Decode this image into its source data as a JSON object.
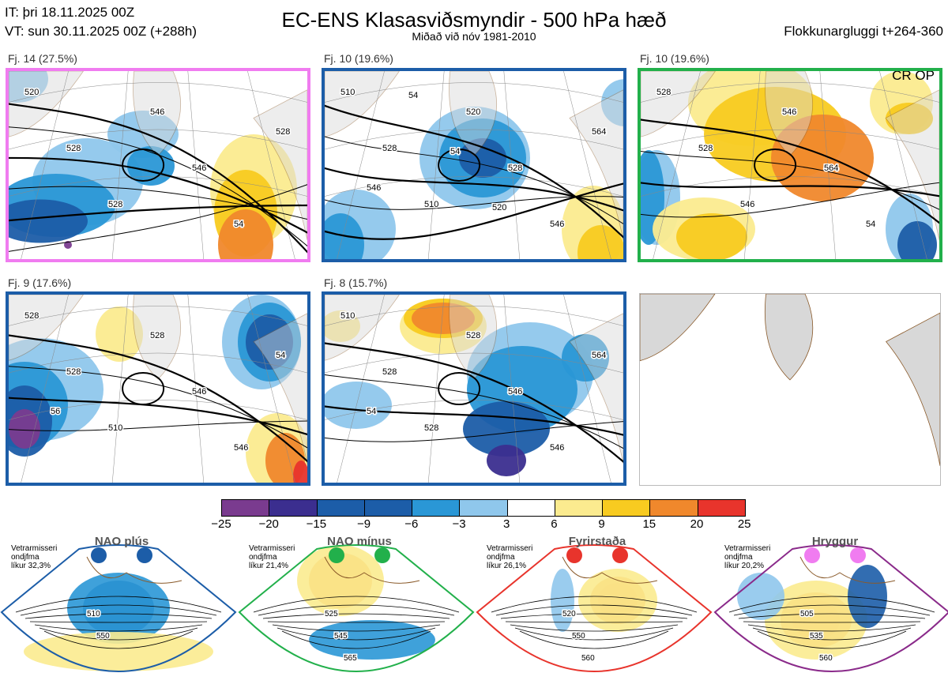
{
  "header": {
    "it": "IT: þri 18.11.2025 00Z",
    "vt": "VT: sun 30.11.2025 00Z  (+288h)",
    "title": "EC-ENS Klasasviðsmyndir - 500 hPa hæð",
    "subtitle": "Miðað við nóv 1981-2010",
    "window": "Flokkunargluggi t+264-360"
  },
  "panels": [
    {
      "label": "Fj. 14 (27.5%)",
      "frame": "#f07cf0",
      "tag": "",
      "contour_labels": [
        "520",
        "528",
        "528",
        "546",
        "546",
        "54",
        "528"
      ]
    },
    {
      "label": "Fj. 10 (19.6%)",
      "frame": "#1c5da8",
      "tag": "",
      "contour_labels": [
        "510",
        "528",
        "510",
        "520",
        "528",
        "546",
        "564",
        "546",
        "54",
        "54",
        "520"
      ]
    },
    {
      "label": "Fj. 10 (19.6%)",
      "frame": "#22b04b",
      "tag": "CR OP",
      "contour_labels": [
        "528",
        "528",
        "546",
        "546",
        "564",
        "54"
      ]
    },
    {
      "label": "Fj. 9 (17.6%)",
      "frame": "#1c5da8",
      "tag": "",
      "contour_labels": [
        "528",
        "528",
        "510",
        "528",
        "546",
        "546",
        "54",
        "56"
      ]
    },
    {
      "label": "Fj. 8 (15.7%)",
      "frame": "#1c5da8",
      "tag": "",
      "contour_labels": [
        "510",
        "528",
        "528",
        "528",
        "546",
        "546",
        "564",
        "54"
      ]
    },
    {
      "label": "",
      "frame": "#bbbbbb",
      "tag": "",
      "contour_labels": []
    }
  ],
  "colors": {
    "purple": "#7a3b8f",
    "navy": "#3b2e8f",
    "dark_blue": "#1c5da8",
    "blue": "#2a97d6",
    "light_blue": "#8fc7ec",
    "white": "#ffffff",
    "pale_yellow": "#fbeb8f",
    "yellow": "#f8cb20",
    "orange": "#f0882c",
    "red": "#e8342c",
    "dark_red": "#a81018",
    "land": "#d8d8d8",
    "coast": "#8a5a2a"
  },
  "chart_data": {
    "type": "heatmap",
    "title": "EC-ENS Klasasviðsmyndir - 500 hPa hæð",
    "subtitle": "Miðað við nóv 1981-2010",
    "clusters": [
      {
        "label": "Fj. 14 (27.5%)",
        "frequency_pct": 27.5
      },
      {
        "label": "Fj. 10 (19.6%)",
        "frequency_pct": 19.6
      },
      {
        "label": "Fj. 10 (19.6%)",
        "frequency_pct": 19.6,
        "regime": "CR OP"
      },
      {
        "label": "Fj. 9 (17.6%)",
        "frequency_pct": 17.6
      },
      {
        "label": "Fj. 8 (15.7%)",
        "frequency_pct": 15.7
      }
    ],
    "colorbar": {
      "boundaries": [
        "−25",
        "−20",
        "−15",
        "−9",
        "−6",
        "−3",
        "3",
        "6",
        "9",
        "15",
        "20",
        "25"
      ],
      "colors": [
        "#7a3b8f",
        "#3b2e8f",
        "#1c5da8",
        "#1c5da8",
        "#2a97d6",
        "#8fc7ec",
        "#ffffff",
        "#fbeb8f",
        "#f8cb20",
        "#f0882c",
        "#e8342c",
        "#a81018"
      ]
    },
    "regimes": [
      {
        "name": "NAO plús",
        "dot_color": "#1c5da8",
        "frame": "#1c5da8",
        "note": [
          "Vetrarmisseri",
          "ondjfma",
          "líkur 32,3%"
        ],
        "probability_pct": 32.3,
        "contour_labels": [
          "510",
          "550"
        ]
      },
      {
        "name": "NAO mínus",
        "dot_color": "#22b04b",
        "frame": "#22b04b",
        "note": [
          "Vetrarmisseri",
          "ondjfma",
          "líkur 21,4%"
        ],
        "probability_pct": 21.4,
        "contour_labels": [
          "525",
          "545",
          "565"
        ]
      },
      {
        "name": "Fyrirstaða",
        "dot_color": "#e8342c",
        "frame": "#e8342c",
        "note": [
          "Vetrarmisseri",
          "ondjfma",
          "líkur 26,1%"
        ],
        "probability_pct": 26.1,
        "contour_labels": [
          "520",
          "550",
          "560"
        ]
      },
      {
        "name": "Hryggur",
        "dot_color": "#f07cf0",
        "frame": "#8a2a8a",
        "note": [
          "Vetrarmisseri",
          "ondjfma",
          "líkur 20,2%"
        ],
        "probability_pct": 20.2,
        "contour_labels": [
          "505",
          "535",
          "560"
        ]
      }
    ]
  }
}
